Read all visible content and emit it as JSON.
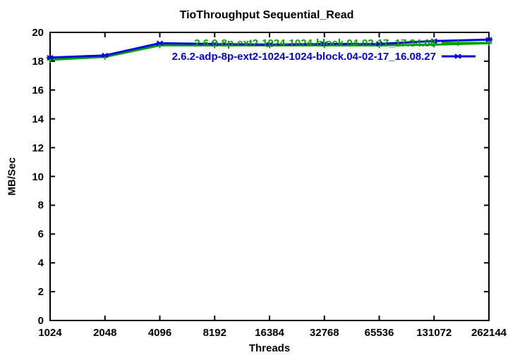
{
  "chart_data": {
    "type": "line",
    "title": "TioThroughput Sequential_Read",
    "xlabel": "Threads",
    "ylabel": "MB/Sec",
    "x_tick_labels": [
      "1024",
      "2048",
      "4096",
      "8192",
      "16384",
      "32768",
      "65536",
      "131072",
      "262144"
    ],
    "y_ticks": [
      0,
      2,
      4,
      6,
      8,
      10,
      12,
      14,
      16,
      18,
      20
    ],
    "ylim": [
      0,
      20
    ],
    "x_scale": "log2",
    "grid": false,
    "legend_position": "top-right-inside",
    "frame": "box-with-mirrored-ticks",
    "background": "#ffffff",
    "series": [
      {
        "name": "2.6.0-8p-ext2-1024-1024-block.04-02-17_17.34.08",
        "color": "#00a000",
        "marker": "plus",
        "values": [
          18.1,
          18.3,
          19.1,
          19.1,
          19.1,
          19.1,
          19.1,
          19.15,
          19.25
        ]
      },
      {
        "name": "2.6.2-adp-8p-ext2-1024-1024-block.04-02-17_16.08.27",
        "color": "#0000e0",
        "marker": "star",
        "values": [
          18.25,
          18.4,
          19.25,
          19.2,
          19.15,
          19.2,
          19.2,
          19.4,
          19.5
        ]
      }
    ]
  }
}
